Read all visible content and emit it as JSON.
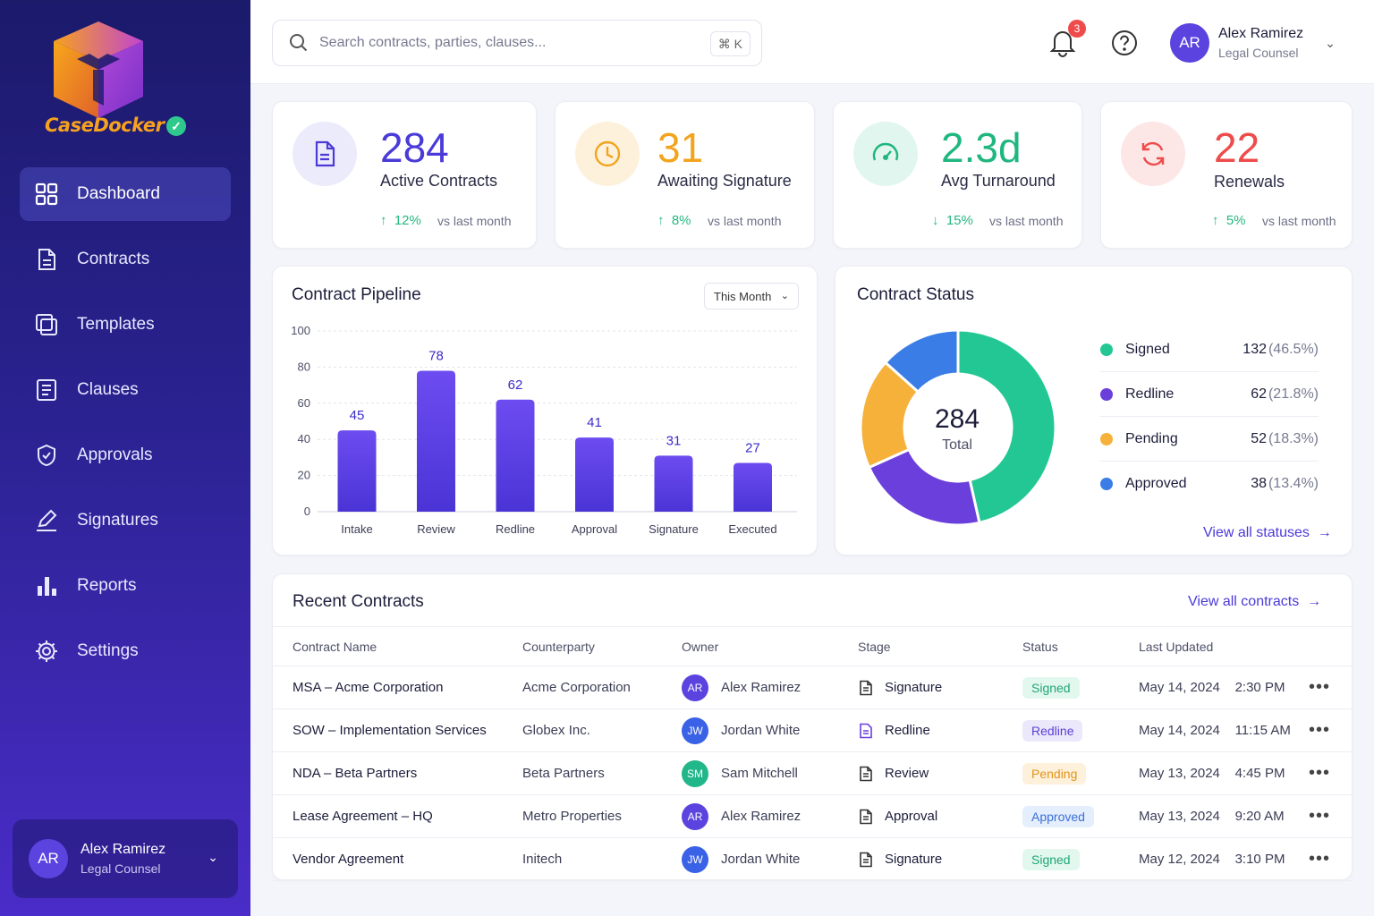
{
  "app": {
    "name": "CaseDocker"
  },
  "nav": [
    {
      "label": "Dashboard",
      "icon": "grid-icon",
      "active": true
    },
    {
      "label": "Contracts",
      "icon": "document-icon"
    },
    {
      "label": "Templates",
      "icon": "copy-icon"
    },
    {
      "label": "Clauses",
      "icon": "list-doc-icon"
    },
    {
      "label": "Approvals",
      "icon": "shield-check-icon"
    },
    {
      "label": "Signatures",
      "icon": "pen-icon"
    },
    {
      "label": "Reports",
      "icon": "bar-chart-icon"
    },
    {
      "label": "Settings",
      "icon": "gear-icon"
    }
  ],
  "user": {
    "name": "Alex Ramirez",
    "role": "Legal Counsel",
    "initials": "AR"
  },
  "search": {
    "placeholder": "Search contracts, parties, clauses...",
    "shortcut": "⌘ K"
  },
  "notifications": {
    "count": "3"
  },
  "stats": [
    {
      "value": "284",
      "label": "Active Contracts",
      "delta": "12%",
      "direction": "up",
      "vs": "vs last month",
      "color": "#4a3ad8",
      "icon": "document-icon"
    },
    {
      "value": "31",
      "label": "Awaiting Signature",
      "delta": "8%",
      "direction": "up",
      "vs": "vs last month",
      "color": "#f2a41e",
      "icon": "clock-icon"
    },
    {
      "value": "2.3d",
      "label": "Avg Turnaround",
      "delta": "15%",
      "direction": "down",
      "vs": "vs last month",
      "color": "#1fb77f",
      "icon": "gauge-icon"
    },
    {
      "value": "22",
      "label": "Renewals",
      "delta": "5%",
      "direction": "up",
      "vs": "vs last month",
      "color": "#ee4b4b",
      "icon": "refresh-icon"
    }
  ],
  "pipeline": {
    "title": "Contract Pipeline",
    "period": "This Month"
  },
  "status": {
    "title": "Contract Status",
    "total": "284",
    "total_label": "Total",
    "items": [
      {
        "label": "Signed",
        "value": "132",
        "pct": "(46.5%)",
        "color": "#22c794"
      },
      {
        "label": "Redline",
        "value": "62",
        "pct": "(21.8%)",
        "color": "#6b3fdc"
      },
      {
        "label": "Pending",
        "value": "52",
        "pct": "(18.3%)",
        "color": "#f6b13a"
      },
      {
        "label": "Approved",
        "value": "38",
        "pct": "(13.4%)",
        "color": "#3a7de6"
      }
    ],
    "link": "View all statuses"
  },
  "chart_data": [
    {
      "type": "bar",
      "categories": [
        "Intake",
        "Review",
        "Redline",
        "Approval",
        "Signature",
        "Executed"
      ],
      "values": [
        45,
        78,
        62,
        41,
        31,
        27
      ],
      "ylim": [
        0,
        100
      ],
      "yticks": [
        0,
        20,
        40,
        60,
        80,
        100
      ],
      "grid": true
    },
    {
      "type": "pie",
      "labels": [
        "Signed",
        "Redline",
        "Pending",
        "Approved"
      ],
      "values": [
        132,
        62,
        52,
        38
      ]
    }
  ],
  "recent": {
    "title": "Recent Contracts",
    "link": "View all contracts",
    "columns": [
      "Contract Name",
      "Counterparty",
      "Owner",
      "Stage",
      "Status",
      "Last Updated"
    ],
    "rows": [
      {
        "name": "MSA – Acme Corporation",
        "counterparty": "Acme Corporation",
        "owner": "Alex Ramirez",
        "initials": "AR",
        "owner_color": "#5b43e0",
        "stage": "Signature",
        "status": "Signed",
        "date": "May 14, 2024",
        "time": "2:30 PM"
      },
      {
        "name": "SOW – Implementation Services",
        "counterparty": "Globex Inc.",
        "owner": "Jordan White",
        "initials": "JW",
        "owner_color": "#3a62e6",
        "stage": "Redline",
        "status": "Redline",
        "date": "May 14, 2024",
        "time": "11:15 AM"
      },
      {
        "name": "NDA – Beta Partners",
        "counterparty": "Beta Partners",
        "owner": "Sam Mitchell",
        "initials": "SM",
        "owner_color": "#22b78a",
        "stage": "Review",
        "status": "Pending",
        "date": "May 13, 2024",
        "time": "4:45 PM"
      },
      {
        "name": "Lease Agreement – HQ",
        "counterparty": "Metro Properties",
        "owner": "Alex Ramirez",
        "initials": "AR",
        "owner_color": "#5b43e0",
        "stage": "Approval",
        "status": "Approved",
        "date": "May 13, 2024",
        "time": "9:20 AM"
      },
      {
        "name": "Vendor Agreement",
        "counterparty": "Initech",
        "owner": "Jordan White",
        "initials": "JW",
        "owner_color": "#3a62e6",
        "stage": "Signature",
        "status": "Signed",
        "date": "May 12, 2024",
        "time": "3:10 PM"
      }
    ]
  }
}
